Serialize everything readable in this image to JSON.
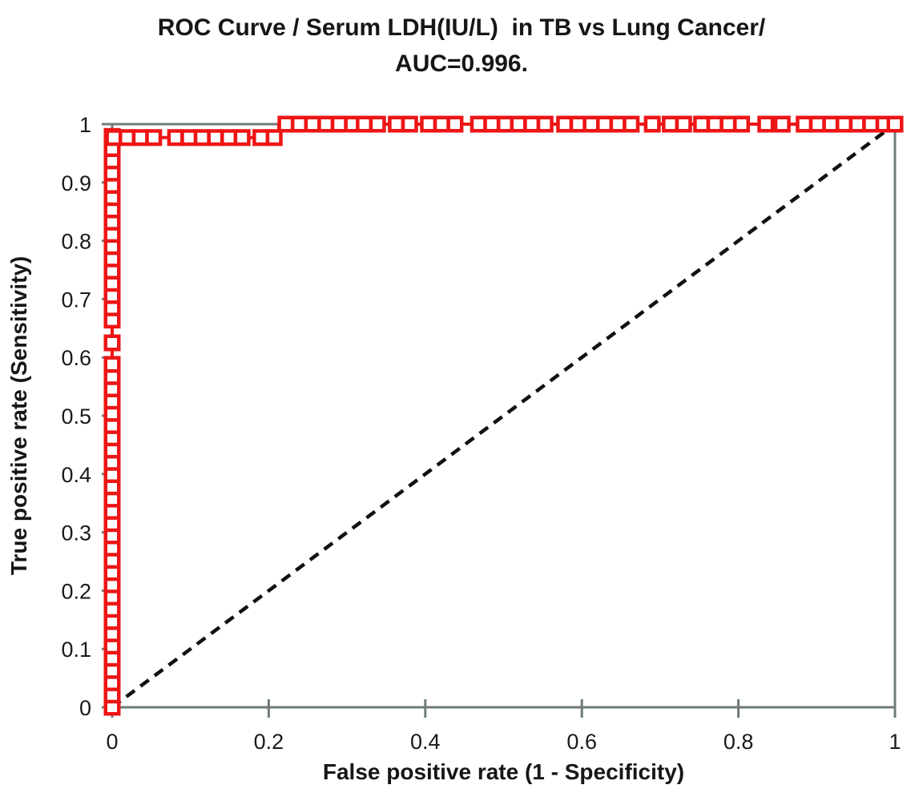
{
  "chart_data": {
    "type": "line",
    "title_line1": "ROC Curve / Serum LDH(IU/L)  in TB vs Lung Cancer/",
    "title_line2": "AUC=0.996.",
    "xlabel": "False positive rate (1 - Specificity)",
    "ylabel": "True positive rate (Sensitivity)",
    "auc": 0.996,
    "xlim": [
      0,
      1
    ],
    "ylim": [
      0,
      1
    ],
    "grid": false,
    "legend": "none",
    "axis_color": "#6e7c7a",
    "x_ticks": [
      0,
      0.2,
      0.4,
      0.6,
      0.8,
      1
    ],
    "x_tick_labels": [
      "0",
      "0.2",
      "0.4",
      "0.6",
      "0.8",
      "1"
    ],
    "y_ticks": [
      0,
      0.1,
      0.2,
      0.3,
      0.4,
      0.5,
      0.6,
      0.7,
      0.8,
      0.9,
      1
    ],
    "y_tick_labels": [
      "0",
      "0.1",
      "0.2",
      "0.3",
      "0.4",
      "0.5",
      "0.6",
      "0.7",
      "0.8",
      "0.9",
      "1"
    ],
    "series": [
      {
        "name": "ROC curve (Serum LDH)",
        "type": "line+markers",
        "color": "#ee1515",
        "marker": "open-square",
        "path": [
          [
            0,
            0
          ],
          [
            0,
            0.977
          ],
          [
            0.213,
            0.977
          ],
          [
            0.213,
            1.0
          ],
          [
            1.0,
            1.0
          ]
        ],
        "markers": {
          "vertical_x": 0,
          "vertical_y": [
            0,
            0.021,
            0.042,
            0.063,
            0.084,
            0.105,
            0.126,
            0.147,
            0.168,
            0.189,
            0.21,
            0.231,
            0.252,
            0.273,
            0.294,
            0.315,
            0.336,
            0.357,
            0.378,
            0.399,
            0.42,
            0.441,
            0.462,
            0.483,
            0.504,
            0.525,
            0.546,
            0.567,
            0.588,
            0.625,
            0.664,
            0.685,
            0.706,
            0.727,
            0.748,
            0.769,
            0.79,
            0.811,
            0.832,
            0.853,
            0.874,
            0.895,
            0.916,
            0.937,
            0.958,
            0.979
          ],
          "row1_y": 0.977,
          "row1_x": [
            0.002,
            0.019,
            0.036,
            0.053,
            0.081,
            0.098,
            0.115,
            0.132,
            0.149,
            0.166,
            0.19,
            0.207
          ],
          "row2_y": 1.0,
          "row2_x": [
            0.222,
            0.239,
            0.256,
            0.273,
            0.29,
            0.307,
            0.322,
            0.339,
            0.363,
            0.38,
            0.404,
            0.421,
            0.438,
            0.468,
            0.485,
            0.502,
            0.519,
            0.536,
            0.553,
            0.578,
            0.595,
            0.612,
            0.629,
            0.646,
            0.663,
            0.69,
            0.713,
            0.73,
            0.753,
            0.77,
            0.787,
            0.804,
            0.835,
            0.856,
            0.884,
            0.901,
            0.918,
            0.935,
            0.952,
            0.969,
            0.986,
            1.0
          ]
        }
      },
      {
        "name": "Chance diagonal",
        "type": "dashed-line",
        "color": "#111111",
        "points": [
          [
            0,
            0
          ],
          [
            1,
            1
          ]
        ]
      }
    ]
  }
}
